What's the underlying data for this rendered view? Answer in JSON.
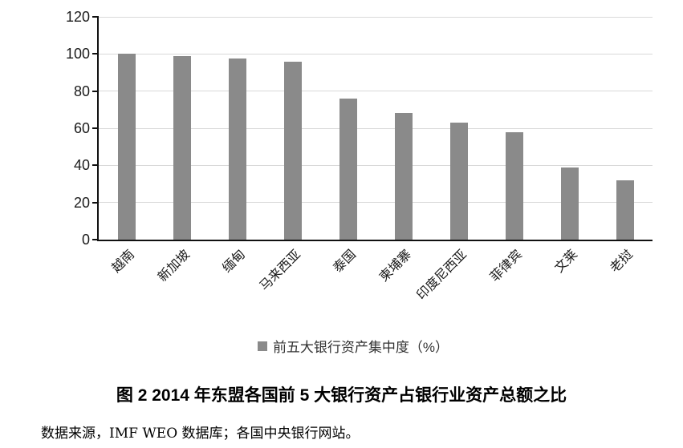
{
  "chart_data": {
    "type": "bar",
    "categories": [
      "越南",
      "新加坡",
      "缅甸",
      "马来西亚",
      "泰国",
      "柬埔寨",
      "印度尼西亚",
      "菲律宾",
      "文莱",
      "老挝"
    ],
    "values": [
      100,
      99,
      97.5,
      96,
      76,
      68,
      63,
      58,
      39,
      32
    ],
    "title": "",
    "xlabel": "",
    "ylabel": "",
    "ylim": [
      0,
      120
    ],
    "yticks": [
      0,
      20,
      40,
      60,
      80,
      100,
      120
    ],
    "grid": true,
    "legend": "前五大银行资产集中度（%）",
    "legend_position": "bottom",
    "colors": {
      "bar": "#8a8a8a",
      "gridline": "#d9d9d9",
      "axis": "#111111",
      "text": "#1a1a1a"
    }
  },
  "caption": "图 2  2014 年东盟各国前 5 大银行资产占银行业资产总额之比",
  "source": "数据来源，IMF WEO 数据库；各国中央银行网站。"
}
